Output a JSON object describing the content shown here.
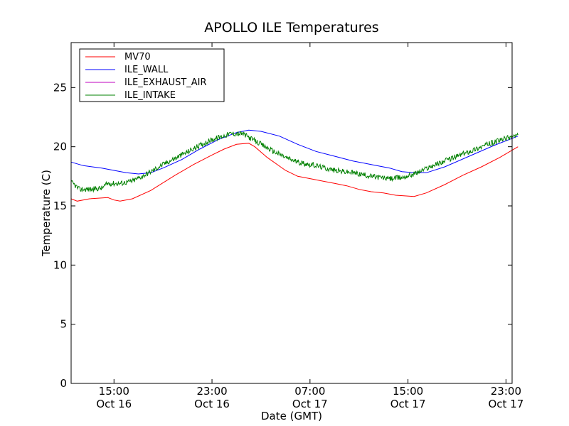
{
  "chart_data": {
    "type": "line",
    "title": "APOLLO ILE Temperatures",
    "xlabel": "Date (GMT)",
    "ylabel": "Temperature (C)",
    "x_unit": "date-hour",
    "xlim": [
      "2014-10-16 11:30",
      "2014-10-17 23:30"
    ],
    "ylim": [
      0,
      28.8
    ],
    "x_ticks": [
      {
        "x": "2014-10-16 15:00",
        "label_time": "15:00",
        "label_date": "Oct 16"
      },
      {
        "x": "2014-10-16 23:00",
        "label_time": "23:00",
        "label_date": "Oct 16"
      },
      {
        "x": "2014-10-17 07:00",
        "label_time": "07:00",
        "label_date": "Oct 17"
      },
      {
        "x": "2014-10-17 15:00",
        "label_time": "15:00",
        "label_date": "Oct 17"
      },
      {
        "x": "2014-10-17 23:00",
        "label_time": "23:00",
        "label_date": "Oct 17"
      }
    ],
    "y_ticks": [
      0,
      5,
      10,
      15,
      20,
      25
    ],
    "grid": false,
    "legend": "top-left",
    "series": [
      {
        "name": "MV70",
        "color": "#ff0000",
        "points": [
          [
            "2014-10-16 11:30",
            15.6
          ],
          [
            "2014-10-16 12:00",
            15.4
          ],
          [
            "2014-10-16 13:00",
            15.6
          ],
          [
            "2014-10-16 14:30",
            15.7
          ],
          [
            "2014-10-16 15:00",
            15.5
          ],
          [
            "2014-10-16 15:30",
            15.4
          ],
          [
            "2014-10-16 16:30",
            15.6
          ],
          [
            "2014-10-16 18:00",
            16.3
          ],
          [
            "2014-10-16 20:00",
            17.6
          ],
          [
            "2014-10-16 21:30",
            18.5
          ],
          [
            "2014-10-16 23:00",
            19.3
          ],
          [
            "2014-10-16 23:59",
            19.8
          ],
          [
            "2014-10-17 01:00",
            20.2
          ],
          [
            "2014-10-17 02:00",
            20.3
          ],
          [
            "2014-10-17 02:30",
            20.0
          ],
          [
            "2014-10-17 03:30",
            19.1
          ],
          [
            "2014-10-17 05:00",
            18.0
          ],
          [
            "2014-10-17 06:00",
            17.5
          ],
          [
            "2014-10-17 07:30",
            17.2
          ],
          [
            "2014-10-17 09:00",
            16.9
          ],
          [
            "2014-10-17 10:00",
            16.7
          ],
          [
            "2014-10-17 11:00",
            16.4
          ],
          [
            "2014-10-17 12:00",
            16.2
          ],
          [
            "2014-10-17 13:00",
            16.1
          ],
          [
            "2014-10-17 14:00",
            15.9
          ],
          [
            "2014-10-17 15:30",
            15.8
          ],
          [
            "2014-10-17 16:30",
            16.1
          ],
          [
            "2014-10-17 18:00",
            16.8
          ],
          [
            "2014-10-17 19:30",
            17.6
          ],
          [
            "2014-10-17 21:00",
            18.3
          ],
          [
            "2014-10-17 22:30",
            19.1
          ],
          [
            "2014-10-17 23:59",
            20.0
          ]
        ]
      },
      {
        "name": "ILE_WALL",
        "color": "#0000ff",
        "points": [
          [
            "2014-10-16 11:30",
            18.7
          ],
          [
            "2014-10-16 12:30",
            18.4
          ],
          [
            "2014-10-16 14:00",
            18.2
          ],
          [
            "2014-10-16 15:00",
            18.0
          ],
          [
            "2014-10-16 16:00",
            17.8
          ],
          [
            "2014-10-16 17:00",
            17.7
          ],
          [
            "2014-10-16 18:00",
            17.8
          ],
          [
            "2014-10-16 19:00",
            18.2
          ],
          [
            "2014-10-16 20:30",
            18.9
          ],
          [
            "2014-10-16 22:00",
            19.8
          ],
          [
            "2014-10-16 23:30",
            20.6
          ],
          [
            "2014-10-17 01:00",
            21.2
          ],
          [
            "2014-10-17 02:00",
            21.4
          ],
          [
            "2014-10-17 03:00",
            21.3
          ],
          [
            "2014-10-17 04:30",
            20.9
          ],
          [
            "2014-10-17 06:00",
            20.2
          ],
          [
            "2014-10-17 07:30",
            19.6
          ],
          [
            "2014-10-17 09:00",
            19.2
          ],
          [
            "2014-10-17 10:30",
            18.8
          ],
          [
            "2014-10-17 12:00",
            18.5
          ],
          [
            "2014-10-17 13:30",
            18.2
          ],
          [
            "2014-10-17 14:30",
            17.9
          ],
          [
            "2014-10-17 15:30",
            17.8
          ],
          [
            "2014-10-17 16:30",
            17.8
          ],
          [
            "2014-10-17 18:00",
            18.3
          ],
          [
            "2014-10-17 20:00",
            19.2
          ],
          [
            "2014-10-17 22:00",
            20.1
          ],
          [
            "2014-10-17 23:59",
            20.9
          ]
        ]
      },
      {
        "name": "ILE_EXHAUST_AIR",
        "color": "#bf00bf",
        "points": []
      },
      {
        "name": "ILE_INTAKE",
        "color": "#008000",
        "points": [
          [
            "2014-10-16 11:30",
            17.0
          ],
          [
            "2014-10-16 11:45",
            16.8
          ],
          [
            "2014-10-16 12:10",
            16.4
          ],
          [
            "2014-10-16 13:00",
            16.4
          ],
          [
            "2014-10-16 14:00",
            16.5
          ],
          [
            "2014-10-16 14:30",
            16.9
          ],
          [
            "2014-10-16 15:30",
            16.9
          ],
          [
            "2014-10-16 16:30",
            17.1
          ],
          [
            "2014-10-16 17:30",
            17.6
          ],
          [
            "2014-10-16 19:00",
            18.5
          ],
          [
            "2014-10-16 20:30",
            19.3
          ],
          [
            "2014-10-16 22:00",
            20.1
          ],
          [
            "2014-10-16 23:00",
            20.6
          ],
          [
            "2014-10-17 00:30",
            21.1
          ],
          [
            "2014-10-17 01:30",
            21.1
          ],
          [
            "2014-10-17 02:30",
            20.5
          ],
          [
            "2014-10-17 03:30",
            19.9
          ],
          [
            "2014-10-17 05:00",
            19.1
          ],
          [
            "2014-10-17 06:00",
            18.7
          ],
          [
            "2014-10-17 07:30",
            18.4
          ],
          [
            "2014-10-17 09:00",
            18.0
          ],
          [
            "2014-10-17 10:30",
            17.8
          ],
          [
            "2014-10-17 12:00",
            17.5
          ],
          [
            "2014-10-17 13:30",
            17.3
          ],
          [
            "2014-10-17 14:30",
            17.4
          ],
          [
            "2014-10-17 15:30",
            17.7
          ],
          [
            "2014-10-17 17:00",
            18.4
          ],
          [
            "2014-10-17 18:30",
            19.0
          ],
          [
            "2014-10-17 20:00",
            19.6
          ],
          [
            "2014-10-17 21:30",
            20.2
          ],
          [
            "2014-10-17 23:00",
            20.7
          ],
          [
            "2014-10-17 23:59",
            21.0
          ]
        ]
      }
    ]
  }
}
